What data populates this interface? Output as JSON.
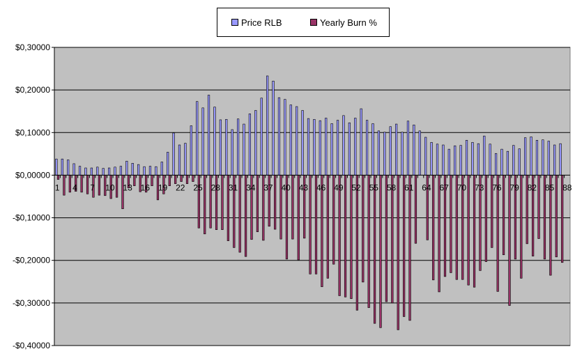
{
  "chart_data": {
    "type": "bar",
    "title": "",
    "xlabel": "",
    "ylabel": "",
    "ylim": [
      -0.4,
      0.3
    ],
    "y_ticks": [
      0.3,
      0.2,
      0.1,
      0.0,
      -0.1,
      -0.2,
      -0.3,
      -0.4
    ],
    "y_tick_labels": [
      "$0,30000",
      "$0,20000",
      "$0,10000",
      "$0,00000",
      "-$0,10000",
      "-$0,20000",
      "-$0,30000",
      "-$0,40000"
    ],
    "x_tick_labels": [
      "1",
      "4",
      "7",
      "10",
      "13",
      "16",
      "19",
      "22",
      "25",
      "28",
      "31",
      "34",
      "37",
      "40",
      "43",
      "46",
      "49",
      "52",
      "55",
      "58",
      "61",
      "64",
      "67",
      "70",
      "73",
      "76",
      "79",
      "82",
      "85",
      "88"
    ],
    "categories": [
      1,
      2,
      3,
      4,
      5,
      6,
      7,
      8,
      9,
      10,
      11,
      12,
      13,
      14,
      15,
      16,
      17,
      18,
      19,
      20,
      21,
      22,
      23,
      24,
      25,
      26,
      27,
      28,
      29,
      30,
      31,
      32,
      33,
      34,
      35,
      36,
      37,
      38,
      39,
      40,
      41,
      42,
      43,
      44,
      45,
      46,
      47,
      48,
      49,
      50,
      51,
      52,
      53,
      54,
      55,
      56,
      57,
      58,
      59,
      60,
      61,
      62,
      63,
      64,
      65,
      66,
      67,
      68,
      69,
      70,
      71,
      72,
      73,
      74,
      75,
      76,
      77,
      78,
      79,
      80,
      81,
      82,
      83,
      84,
      85,
      86,
      87,
      88
    ],
    "grid": true,
    "plot_background": "#c0c0c0",
    "legend_position": "top-center",
    "series": [
      {
        "name": "Price RLB",
        "color": "#9999ff",
        "values": [
          0.038,
          0.038,
          0.036,
          0.027,
          0.021,
          0.017,
          0.017,
          0.019,
          0.016,
          0.017,
          0.019,
          0.021,
          0.033,
          0.028,
          0.025,
          0.02,
          0.021,
          0.02,
          0.031,
          0.054,
          0.099,
          0.071,
          0.075,
          0.116,
          0.173,
          0.158,
          0.188,
          0.16,
          0.13,
          0.131,
          0.107,
          0.132,
          0.12,
          0.144,
          0.152,
          0.181,
          0.233,
          0.221,
          0.182,
          0.178,
          0.165,
          0.161,
          0.152,
          0.133,
          0.131,
          0.128,
          0.134,
          0.121,
          0.129,
          0.14,
          0.123,
          0.134,
          0.156,
          0.129,
          0.121,
          0.104,
          0.101,
          0.114,
          0.12,
          0.101,
          0.127,
          0.118,
          0.104,
          0.089,
          0.077,
          0.073,
          0.071,
          0.061,
          0.069,
          0.07,
          0.082,
          0.077,
          0.074,
          0.092,
          0.073,
          0.051,
          0.061,
          0.056,
          0.07,
          0.062,
          0.088,
          0.09,
          0.082,
          0.083,
          0.08,
          0.071,
          0.074,
          0.0
        ]
      },
      {
        "name": "Yearly Burn %",
        "color": "#993366",
        "values": [
          -0.01,
          -0.047,
          -0.04,
          -0.038,
          -0.04,
          -0.044,
          -0.052,
          -0.047,
          -0.048,
          -0.055,
          -0.052,
          -0.079,
          -0.03,
          -0.025,
          -0.039,
          -0.04,
          -0.025,
          -0.058,
          -0.044,
          -0.025,
          -0.02,
          -0.015,
          -0.02,
          -0.015,
          -0.124,
          -0.138,
          -0.124,
          -0.128,
          -0.128,
          -0.154,
          -0.17,
          -0.181,
          -0.191,
          -0.151,
          -0.133,
          -0.153,
          -0.12,
          -0.127,
          -0.15,
          -0.197,
          -0.15,
          -0.199,
          -0.148,
          -0.232,
          -0.232,
          -0.262,
          -0.242,
          -0.209,
          -0.283,
          -0.286,
          -0.29,
          -0.317,
          -0.251,
          -0.311,
          -0.348,
          -0.358,
          -0.297,
          -0.3,
          -0.363,
          -0.332,
          -0.341,
          -0.16,
          -0.0,
          -0.152,
          -0.246,
          -0.274,
          -0.238,
          -0.229,
          -0.245,
          -0.245,
          -0.258,
          -0.263,
          -0.224,
          -0.203,
          -0.17,
          -0.273,
          -0.187,
          -0.306,
          -0.197,
          -0.242,
          -0.161,
          -0.19,
          -0.149,
          -0.197,
          -0.235,
          -0.192,
          -0.205,
          0.0
        ]
      }
    ]
  }
}
